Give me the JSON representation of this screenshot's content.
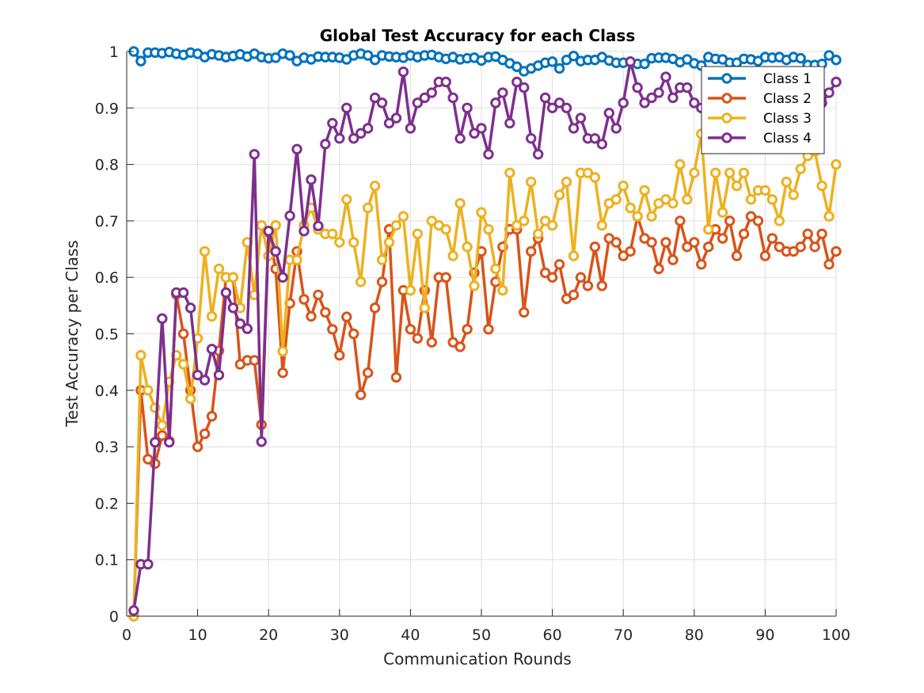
{
  "chart_data": {
    "type": "line",
    "title": "Global Test Accuracy for each Class",
    "xlabel": "Communication Rounds",
    "ylabel": "Test Accuracy per Class",
    "xlim": [
      0,
      100
    ],
    "ylim": [
      0,
      1
    ],
    "xticks": [
      0,
      10,
      20,
      30,
      40,
      50,
      60,
      70,
      80,
      90,
      100
    ],
    "yticks": [
      0,
      0.1,
      0.2,
      0.3,
      0.4,
      0.5,
      0.6,
      0.7,
      0.8,
      0.9,
      1
    ],
    "ytick_labels": [
      "0",
      "0.1",
      "0.2",
      "0.3",
      "0.4",
      "0.5",
      "0.6",
      "0.7",
      "0.8",
      "0.9",
      "1"
    ],
    "grid": true,
    "legend_position": "top-right",
    "x": [
      1,
      2,
      3,
      4,
      5,
      6,
      7,
      8,
      9,
      10,
      11,
      12,
      13,
      14,
      15,
      16,
      17,
      18,
      19,
      20,
      21,
      22,
      23,
      24,
      25,
      26,
      27,
      28,
      29,
      30,
      31,
      32,
      33,
      34,
      35,
      36,
      37,
      38,
      39,
      40,
      41,
      42,
      43,
      44,
      45,
      46,
      47,
      48,
      49,
      50,
      51,
      52,
      53,
      54,
      55,
      56,
      57,
      58,
      59,
      60,
      61,
      62,
      63,
      64,
      65,
      66,
      67,
      68,
      69,
      70,
      71,
      72,
      73,
      74,
      75,
      76,
      77,
      78,
      79,
      80,
      81,
      82,
      83,
      84,
      85,
      86,
      87,
      88,
      89,
      90,
      91,
      92,
      93,
      94,
      95,
      96,
      97,
      98,
      99,
      100
    ],
    "series": [
      {
        "name": "Class 1",
        "color": "#0072BD",
        "values": [
          1.0,
          0.983,
          0.998,
          0.998,
          0.997,
          0.999,
          0.996,
          0.994,
          0.998,
          0.996,
          0.99,
          0.995,
          0.993,
          0.99,
          0.992,
          0.995,
          0.991,
          0.996,
          0.99,
          0.988,
          0.989,
          0.996,
          0.993,
          0.983,
          0.989,
          0.986,
          0.991,
          0.99,
          0.99,
          0.989,
          0.986,
          0.993,
          0.996,
          0.993,
          0.985,
          0.993,
          0.991,
          0.99,
          0.989,
          0.993,
          0.99,
          0.993,
          0.994,
          0.99,
          0.987,
          0.99,
          0.986,
          0.988,
          0.989,
          0.984,
          0.99,
          0.991,
          0.985,
          0.979,
          0.973,
          0.965,
          0.97,
          0.975,
          0.98,
          0.982,
          0.97,
          0.985,
          0.992,
          0.983,
          0.985,
          0.985,
          0.99,
          0.984,
          0.98,
          0.98,
          0.982,
          0.978,
          0.978,
          0.988,
          0.989,
          0.989,
          0.987,
          0.981,
          0.986,
          0.979,
          0.975,
          0.99,
          0.987,
          0.986,
          0.98,
          0.98,
          0.987,
          0.986,
          0.983,
          0.99,
          0.989,
          0.99,
          0.985,
          0.99,
          0.988,
          0.976,
          0.976,
          0.978,
          0.993,
          0.985
        ]
      },
      {
        "name": "Class 2",
        "color": "#D95319",
        "values": [
          0.0,
          0.4,
          0.278,
          0.27,
          0.32,
          0.31,
          0.57,
          0.5,
          0.4,
          0.3,
          0.323,
          0.354,
          0.47,
          0.6,
          0.6,
          0.446,
          0.453,
          0.453,
          0.339,
          0.68,
          0.615,
          0.431,
          0.554,
          0.646,
          0.561,
          0.531,
          0.569,
          0.538,
          0.508,
          0.462,
          0.53,
          0.5,
          0.392,
          0.431,
          0.546,
          0.592,
          0.685,
          0.423,
          0.577,
          0.508,
          0.492,
          0.577,
          0.485,
          0.6,
          0.6,
          0.485,
          0.477,
          0.508,
          0.608,
          0.646,
          0.508,
          0.592,
          0.654,
          0.685,
          0.685,
          0.538,
          0.646,
          0.669,
          0.608,
          0.6,
          0.623,
          0.562,
          0.569,
          0.6,
          0.585,
          0.654,
          0.585,
          0.669,
          0.662,
          0.638,
          0.646,
          0.708,
          0.669,
          0.662,
          0.615,
          0.662,
          0.631,
          0.7,
          0.654,
          0.662,
          0.623,
          0.654,
          0.685,
          0.669,
          0.7,
          0.638,
          0.677,
          0.708,
          0.7,
          0.638,
          0.669,
          0.654,
          0.646,
          0.646,
          0.654,
          0.677,
          0.654,
          0.677,
          0.623,
          0.646
        ]
      },
      {
        "name": "Class 3",
        "color": "#EDB120",
        "values": [
          0.0,
          0.462,
          0.4,
          0.369,
          0.338,
          0.415,
          0.462,
          0.446,
          0.385,
          0.492,
          0.646,
          0.531,
          0.615,
          0.6,
          0.6,
          0.546,
          0.662,
          0.569,
          0.692,
          0.638,
          0.692,
          0.469,
          0.631,
          0.631,
          0.692,
          0.723,
          0.685,
          0.677,
          0.677,
          0.662,
          0.738,
          0.662,
          0.592,
          0.723,
          0.762,
          0.631,
          0.662,
          0.692,
          0.708,
          0.577,
          0.677,
          0.546,
          0.7,
          0.692,
          0.685,
          0.638,
          0.731,
          0.654,
          0.585,
          0.715,
          0.685,
          0.615,
          0.577,
          0.785,
          0.692,
          0.7,
          0.769,
          0.677,
          0.7,
          0.692,
          0.746,
          0.769,
          0.638,
          0.785,
          0.785,
          0.777,
          0.692,
          0.731,
          0.738,
          0.762,
          0.723,
          0.708,
          0.754,
          0.708,
          0.731,
          0.738,
          0.731,
          0.8,
          0.738,
          0.785,
          0.854,
          0.685,
          0.785,
          0.715,
          0.785,
          0.762,
          0.785,
          0.738,
          0.754,
          0.754,
          0.738,
          0.7,
          0.769,
          0.746,
          0.792,
          0.815,
          0.823,
          0.762,
          0.708,
          0.8
        ]
      },
      {
        "name": "Class 4",
        "color": "#7E2F8E",
        "values": [
          0.01,
          0.092,
          0.092,
          0.308,
          0.527,
          0.308,
          0.573,
          0.573,
          0.546,
          0.427,
          0.418,
          0.473,
          0.427,
          0.573,
          0.546,
          0.518,
          0.509,
          0.818,
          0.309,
          0.682,
          0.646,
          0.6,
          0.709,
          0.827,
          0.682,
          0.773,
          0.691,
          0.836,
          0.873,
          0.846,
          0.9,
          0.846,
          0.855,
          0.864,
          0.918,
          0.909,
          0.873,
          0.882,
          0.964,
          0.864,
          0.909,
          0.918,
          0.927,
          0.946,
          0.946,
          0.918,
          0.846,
          0.9,
          0.855,
          0.864,
          0.818,
          0.909,
          0.927,
          0.873,
          0.946,
          0.936,
          0.846,
          0.818,
          0.918,
          0.9,
          0.909,
          0.9,
          0.864,
          0.882,
          0.846,
          0.846,
          0.836,
          0.891,
          0.864,
          0.909,
          0.982,
          0.936,
          0.909,
          0.918,
          0.927,
          0.955,
          0.918,
          0.936,
          0.936,
          0.909,
          0.9,
          0.873,
          0.864,
          0.873,
          0.909,
          0.891,
          0.918,
          0.882,
          0.864,
          0.891,
          0.9,
          0.882,
          0.873,
          0.891,
          0.909,
          0.918,
          0.9,
          0.909,
          0.927,
          0.946
        ]
      }
    ]
  }
}
